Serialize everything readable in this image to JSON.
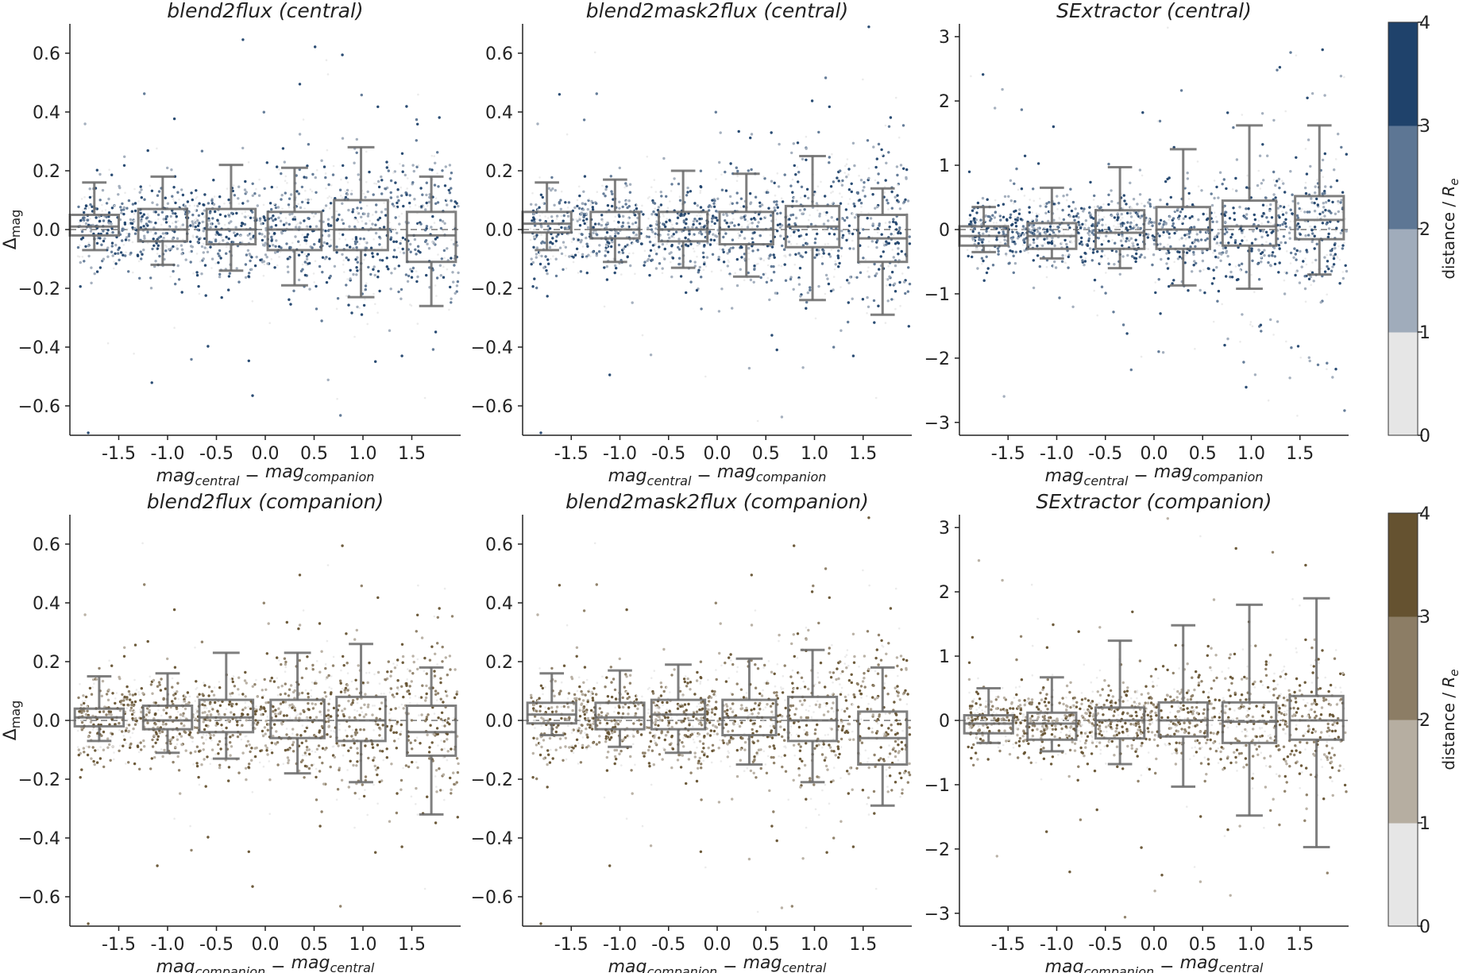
{
  "chart_data": {
    "type": "scatter",
    "description_layout": "2x3 grid of scatter plots with box plots per magnitude bin, plus two discrete colorbars",
    "panels": [
      {
        "id": "c1",
        "title": "blend2flux (central)",
        "xlabel": "mag_central − mag_companion",
        "xlabel_main": "mag",
        "xlabel_sub1": "central",
        "xlabel_sep": " − ",
        "xlabel_main2": "mag",
        "xlabel_sub2": "companion",
        "ylabel": "Δmag",
        "ylabel_main": "Δ",
        "ylabel_sub": "mag",
        "xlim": [
          -2.0,
          2.0
        ],
        "ylim": [
          -0.7,
          0.7
        ],
        "xticks": [
          -1.5,
          -1.0,
          -0.5,
          0.0,
          0.5,
          1.0,
          1.5
        ],
        "xtick_labels": [
          "-1.5",
          "-1.0",
          "-0.5",
          "0.0",
          "0.5",
          "1.0",
          "1.5"
        ],
        "yticks": [
          -0.6,
          -0.4,
          -0.2,
          0.0,
          0.2,
          0.4,
          0.6
        ],
        "ytick_labels": [
          "−0.6",
          "−0.4",
          "−0.2",
          "0.0",
          "0.2",
          "0.4",
          "0.6"
        ],
        "colormap": "blue",
        "spread": 0.1,
        "outlier_rate": 0.06,
        "boxes": [
          {
            "x": -1.75,
            "w": 0.5,
            "q1": -0.02,
            "median": 0.01,
            "q3": 0.05,
            "whislo": -0.07,
            "whishi": 0.16
          },
          {
            "x": -1.05,
            "w": 0.5,
            "q1": -0.04,
            "median": 0.0,
            "q3": 0.07,
            "whislo": -0.12,
            "whishi": 0.18
          },
          {
            "x": -0.35,
            "w": 0.5,
            "q1": -0.05,
            "median": 0.0,
            "q3": 0.07,
            "whislo": -0.14,
            "whishi": 0.22
          },
          {
            "x": 0.3,
            "w": 0.55,
            "q1": -0.07,
            "median": 0.0,
            "q3": 0.06,
            "whislo": -0.19,
            "whishi": 0.21
          },
          {
            "x": 0.98,
            "w": 0.55,
            "q1": -0.07,
            "median": 0.0,
            "q3": 0.1,
            "whislo": -0.23,
            "whishi": 0.28
          },
          {
            "x": 1.7,
            "w": 0.5,
            "q1": -0.11,
            "median": -0.02,
            "q3": 0.06,
            "whislo": -0.26,
            "whishi": 0.18
          }
        ]
      },
      {
        "id": "c2",
        "title": "blend2mask2flux (central)",
        "xlabel": "mag_central − mag_companion",
        "xlabel_main": "mag",
        "xlabel_sub1": "central",
        "xlabel_sep": " − ",
        "xlabel_main2": "mag",
        "xlabel_sub2": "companion",
        "ylabel": "",
        "ylabel_main": "",
        "ylabel_sub": "",
        "xlim": [
          -2.0,
          2.0
        ],
        "ylim": [
          -0.7,
          0.7
        ],
        "xticks": [
          -1.5,
          -1.0,
          -0.5,
          0.0,
          0.5,
          1.0,
          1.5
        ],
        "xtick_labels": [
          "-1.5",
          "-1.0",
          "-0.5",
          "0.0",
          "0.5",
          "1.0",
          "1.5"
        ],
        "yticks": [
          -0.6,
          -0.4,
          -0.2,
          0.0,
          0.2,
          0.4,
          0.6
        ],
        "ytick_labels": [
          "−0.6",
          "−0.4",
          "−0.2",
          "0.0",
          "0.2",
          "0.4",
          "0.6"
        ],
        "colormap": "blue",
        "spread": 0.1,
        "outlier_rate": 0.06,
        "boxes": [
          {
            "x": -1.75,
            "w": 0.5,
            "q1": -0.01,
            "median": 0.02,
            "q3": 0.06,
            "whislo": -0.07,
            "whishi": 0.16
          },
          {
            "x": -1.05,
            "w": 0.5,
            "q1": -0.03,
            "median": 0.0,
            "q3": 0.06,
            "whislo": -0.11,
            "whishi": 0.17
          },
          {
            "x": -0.35,
            "w": 0.5,
            "q1": -0.04,
            "median": 0.0,
            "q3": 0.06,
            "whislo": -0.13,
            "whishi": 0.2
          },
          {
            "x": 0.3,
            "w": 0.55,
            "q1": -0.05,
            "median": 0.0,
            "q3": 0.06,
            "whislo": -0.16,
            "whishi": 0.19
          },
          {
            "x": 0.98,
            "w": 0.55,
            "q1": -0.06,
            "median": 0.01,
            "q3": 0.08,
            "whislo": -0.24,
            "whishi": 0.25
          },
          {
            "x": 1.7,
            "w": 0.5,
            "q1": -0.11,
            "median": -0.03,
            "q3": 0.05,
            "whislo": -0.29,
            "whishi": 0.14
          }
        ]
      },
      {
        "id": "c3",
        "title": "SExtractor (central)",
        "xlabel": "mag_central − mag_companion",
        "xlabel_main": "mag",
        "xlabel_sub1": "central",
        "xlabel_sep": " − ",
        "xlabel_main2": "mag",
        "xlabel_sub2": "companion",
        "ylabel": "",
        "ylabel_main": "",
        "ylabel_sub": "",
        "xlim": [
          -2.0,
          2.0
        ],
        "ylim": [
          -3.2,
          3.2
        ],
        "xticks": [
          -1.5,
          -1.0,
          -0.5,
          0.0,
          0.5,
          1.0,
          1.5
        ],
        "xtick_labels": [
          "-1.5",
          "-1.0",
          "-0.5",
          "0.0",
          "0.5",
          "1.0",
          "1.5"
        ],
        "yticks": [
          -3,
          -2,
          -1,
          0,
          1,
          2,
          3
        ],
        "ytick_labels": [
          "−3",
          "−2",
          "−1",
          "0",
          "1",
          "2",
          "3"
        ],
        "colormap": "blue",
        "spread": 0.35,
        "outlier_rate": 0.1,
        "boxes": [
          {
            "x": -1.75,
            "w": 0.5,
            "q1": -0.25,
            "median": -0.1,
            "q3": 0.05,
            "whislo": -0.35,
            "whishi": 0.35
          },
          {
            "x": -1.05,
            "w": 0.5,
            "q1": -0.3,
            "median": -0.1,
            "q3": 0.1,
            "whislo": -0.45,
            "whishi": 0.65
          },
          {
            "x": -0.35,
            "w": 0.5,
            "q1": -0.3,
            "median": -0.05,
            "q3": 0.3,
            "whislo": -0.6,
            "whishi": 0.97
          },
          {
            "x": 0.3,
            "w": 0.55,
            "q1": -0.3,
            "median": 0.0,
            "q3": 0.35,
            "whislo": -0.87,
            "whishi": 1.25
          },
          {
            "x": 0.98,
            "w": 0.55,
            "q1": -0.25,
            "median": 0.05,
            "q3": 0.45,
            "whislo": -0.92,
            "whishi": 1.62
          },
          {
            "x": 1.7,
            "w": 0.5,
            "q1": -0.15,
            "median": 0.15,
            "q3": 0.52,
            "whislo": -0.7,
            "whishi": 1.62
          }
        ]
      },
      {
        "id": "p1",
        "title": "blend2flux (companion)",
        "xlabel": "mag_companion − mag_central",
        "xlabel_main": "mag",
        "xlabel_sub1": "companion",
        "xlabel_sep": " − ",
        "xlabel_main2": "mag",
        "xlabel_sub2": "central",
        "ylabel": "Δmag",
        "ylabel_main": "Δ",
        "ylabel_sub": "mag",
        "xlim": [
          -2.0,
          2.0
        ],
        "ylim": [
          -0.7,
          0.7
        ],
        "xticks": [
          -1.5,
          -1.0,
          -0.5,
          0.0,
          0.5,
          1.0,
          1.5
        ],
        "xtick_labels": [
          "-1.5",
          "-1.0",
          "-0.5",
          "0.0",
          "0.5",
          "1.0",
          "1.5"
        ],
        "yticks": [
          -0.6,
          -0.4,
          -0.2,
          0.0,
          0.2,
          0.4,
          0.6
        ],
        "ytick_labels": [
          "−0.6",
          "−0.4",
          "−0.2",
          "0.0",
          "0.2",
          "0.4",
          "0.6"
        ],
        "colormap": "brown",
        "spread": 0.1,
        "outlier_rate": 0.06,
        "boxes": [
          {
            "x": -1.7,
            "w": 0.5,
            "q1": -0.02,
            "median": 0.01,
            "q3": 0.04,
            "whislo": -0.07,
            "whishi": 0.15
          },
          {
            "x": -1.0,
            "w": 0.5,
            "q1": -0.03,
            "median": 0.0,
            "q3": 0.05,
            "whislo": -0.11,
            "whishi": 0.16
          },
          {
            "x": -0.4,
            "w": 0.55,
            "q1": -0.04,
            "median": 0.01,
            "q3": 0.07,
            "whislo": -0.13,
            "whishi": 0.23
          },
          {
            "x": 0.33,
            "w": 0.55,
            "q1": -0.06,
            "median": 0.0,
            "q3": 0.07,
            "whislo": -0.18,
            "whishi": 0.23
          },
          {
            "x": 0.98,
            "w": 0.5,
            "q1": -0.07,
            "median": 0.0,
            "q3": 0.08,
            "whislo": -0.21,
            "whishi": 0.26
          },
          {
            "x": 1.7,
            "w": 0.5,
            "q1": -0.12,
            "median": -0.04,
            "q3": 0.05,
            "whislo": -0.32,
            "whishi": 0.18
          }
        ]
      },
      {
        "id": "p2",
        "title": "blend2mask2flux (companion)",
        "xlabel": "mag_companion − mag_central",
        "xlabel_main": "mag",
        "xlabel_sub1": "companion",
        "xlabel_sep": " − ",
        "xlabel_main2": "mag",
        "xlabel_sub2": "central",
        "ylabel": "",
        "ylabel_main": "",
        "ylabel_sub": "",
        "xlim": [
          -2.0,
          2.0
        ],
        "ylim": [
          -0.7,
          0.7
        ],
        "xticks": [
          -1.5,
          -1.0,
          -0.5,
          0.0,
          0.5,
          1.0,
          1.5
        ],
        "xtick_labels": [
          "-1.5",
          "-1.0",
          "-0.5",
          "0.0",
          "0.5",
          "1.0",
          "1.5"
        ],
        "yticks": [
          -0.6,
          -0.4,
          -0.2,
          0.0,
          0.2,
          0.4,
          0.6
        ],
        "ytick_labels": [
          "−0.6",
          "−0.4",
          "−0.2",
          "0.0",
          "0.2",
          "0.4",
          "0.6"
        ],
        "colormap": "brown",
        "spread": 0.1,
        "outlier_rate": 0.06,
        "boxes": [
          {
            "x": -1.7,
            "w": 0.5,
            "q1": -0.01,
            "median": 0.02,
            "q3": 0.06,
            "whislo": -0.05,
            "whishi": 0.16
          },
          {
            "x": -1.0,
            "w": 0.5,
            "q1": -0.03,
            "median": 0.01,
            "q3": 0.06,
            "whislo": -0.09,
            "whishi": 0.17
          },
          {
            "x": -0.4,
            "w": 0.55,
            "q1": -0.03,
            "median": 0.02,
            "q3": 0.07,
            "whislo": -0.11,
            "whishi": 0.19
          },
          {
            "x": 0.33,
            "w": 0.55,
            "q1": -0.05,
            "median": 0.01,
            "q3": 0.07,
            "whislo": -0.15,
            "whishi": 0.21
          },
          {
            "x": 0.98,
            "w": 0.5,
            "q1": -0.07,
            "median": 0.0,
            "q3": 0.08,
            "whislo": -0.21,
            "whishi": 0.24
          },
          {
            "x": 1.7,
            "w": 0.5,
            "q1": -0.15,
            "median": -0.06,
            "q3": 0.03,
            "whislo": -0.29,
            "whishi": 0.18
          }
        ]
      },
      {
        "id": "p3",
        "title": "SExtractor (companion)",
        "xlabel": "mag_companion − mag_central",
        "xlabel_main": "mag",
        "xlabel_sub1": "companion",
        "xlabel_sep": " − ",
        "xlabel_main2": "mag",
        "xlabel_sub2": "central",
        "ylabel": "",
        "ylabel_main": "",
        "ylabel_sub": "",
        "xlim": [
          -2.0,
          2.0
        ],
        "ylim": [
          -3.2,
          3.2
        ],
        "xticks": [
          -1.5,
          -1.0,
          -0.5,
          0.0,
          0.5,
          1.0,
          1.5
        ],
        "xtick_labels": [
          "-1.5",
          "-1.0",
          "-0.5",
          "0.0",
          "0.5",
          "1.0",
          "1.5"
        ],
        "yticks": [
          -3,
          -2,
          -1,
          0,
          1,
          2,
          3
        ],
        "ytick_labels": [
          "−3",
          "−2",
          "−1",
          "0",
          "1",
          "2",
          "3"
        ],
        "colormap": "brown",
        "spread": 0.35,
        "outlier_rate": 0.1,
        "boxes": [
          {
            "x": -1.7,
            "w": 0.5,
            "q1": -0.2,
            "median": -0.05,
            "q3": 0.08,
            "whislo": -0.35,
            "whishi": 0.5
          },
          {
            "x": -1.05,
            "w": 0.5,
            "q1": -0.3,
            "median": -0.05,
            "q3": 0.12,
            "whislo": -0.48,
            "whishi": 0.67
          },
          {
            "x": -0.35,
            "w": 0.5,
            "q1": -0.28,
            "median": 0.0,
            "q3": 0.2,
            "whislo": -0.68,
            "whishi": 1.24
          },
          {
            "x": 0.3,
            "w": 0.5,
            "q1": -0.25,
            "median": 0.0,
            "q3": 0.28,
            "whislo": -1.03,
            "whishi": 1.48
          },
          {
            "x": 0.98,
            "w": 0.55,
            "q1": -0.35,
            "median": -0.02,
            "q3": 0.28,
            "whislo": -1.48,
            "whishi": 1.8
          },
          {
            "x": 1.67,
            "w": 0.55,
            "q1": -0.3,
            "median": 0.0,
            "q3": 0.38,
            "whislo": -1.97,
            "whishi": 1.9
          }
        ]
      }
    ],
    "colorbars": [
      {
        "id": "cb-blue",
        "label": "distance / R_e",
        "label_main": "distance / ",
        "label_var": "R",
        "label_sub": "e",
        "ticks": [
          0,
          1,
          2,
          3,
          4
        ],
        "tick_labels": [
          "0",
          "1",
          "2",
          "3",
          "4"
        ],
        "colors": [
          "#e6e6e6",
          "#a0acbb",
          "#5d7694",
          "#1f426b"
        ]
      },
      {
        "id": "cb-brown",
        "label": "distance / R_e",
        "label_main": "distance / ",
        "label_var": "R",
        "label_sub": "e",
        "ticks": [
          0,
          1,
          2,
          3,
          4
        ],
        "tick_labels": [
          "0",
          "1",
          "2",
          "3",
          "4"
        ],
        "colors": [
          "#e6e6e6",
          "#b6aea1",
          "#8c7d65",
          "#655230"
        ]
      }
    ]
  }
}
